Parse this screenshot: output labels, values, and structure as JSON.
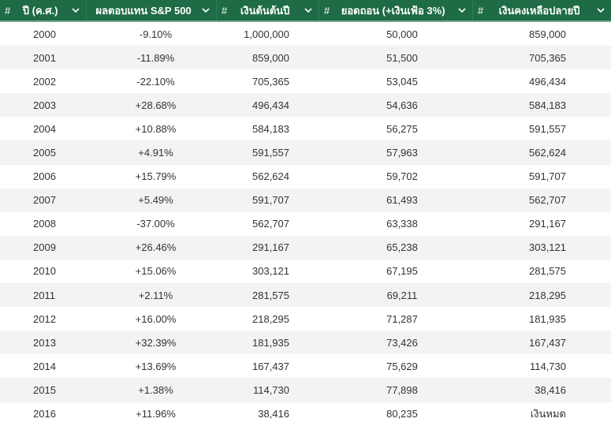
{
  "table": {
    "headers": [
      {
        "hash": "#",
        "title": "ปี (ค.ศ.)"
      },
      {
        "hash": "",
        "title": "ผลตอบแทน S&P 500"
      },
      {
        "hash": "#",
        "title": "เงินต้นต้นปี"
      },
      {
        "hash": "#",
        "title": "ยอดถอน (+เงินเฟ้อ 3%)"
      },
      {
        "hash": "#",
        "title": "เงินคงเหลือปลายปี"
      }
    ],
    "rows": [
      [
        "2000",
        "-9.10%",
        "1,000,000",
        "50,000",
        "859,000"
      ],
      [
        "2001",
        "-11.89%",
        "859,000",
        "51,500",
        "705,365"
      ],
      [
        "2002",
        "-22.10%",
        "705,365",
        "53,045",
        "496,434"
      ],
      [
        "2003",
        "+28.68%",
        "496,434",
        "54,636",
        "584,183"
      ],
      [
        "2004",
        "+10.88%",
        "584,183",
        "56,275",
        "591,557"
      ],
      [
        "2005",
        "+4.91%",
        "591,557",
        "57,963",
        "562,624"
      ],
      [
        "2006",
        "+15.79%",
        "562,624",
        "59,702",
        "591,707"
      ],
      [
        "2007",
        "+5.49%",
        "591,707",
        "61,493",
        "562,707"
      ],
      [
        "2008",
        "-37.00%",
        "562,707",
        "63,338",
        "291,167"
      ],
      [
        "2009",
        "+26.46%",
        "291,167",
        "65,238",
        "303,121"
      ],
      [
        "2010",
        "+15.06%",
        "303,121",
        "67,195",
        "281,575"
      ],
      [
        "2011",
        "+2.11%",
        "281,575",
        "69,211",
        "218,295"
      ],
      [
        "2012",
        "+16.00%",
        "218,295",
        "71,287",
        "181,935"
      ],
      [
        "2013",
        "+32.39%",
        "181,935",
        "73,426",
        "167,437"
      ],
      [
        "2014",
        "+13.69%",
        "167,437",
        "75,629",
        "114,730"
      ],
      [
        "2015",
        "+1.38%",
        "114,730",
        "77,898",
        "38,416"
      ],
      [
        "2016",
        "+11.96%",
        "38,416",
        "80,235",
        "เงินหมด"
      ]
    ]
  },
  "icons": {
    "column_menu": "chevron-down-icon"
  },
  "colors": {
    "header_bg": "#1e6b45",
    "header_text": "#ffffff",
    "row_alt": "#f3f3f3"
  }
}
